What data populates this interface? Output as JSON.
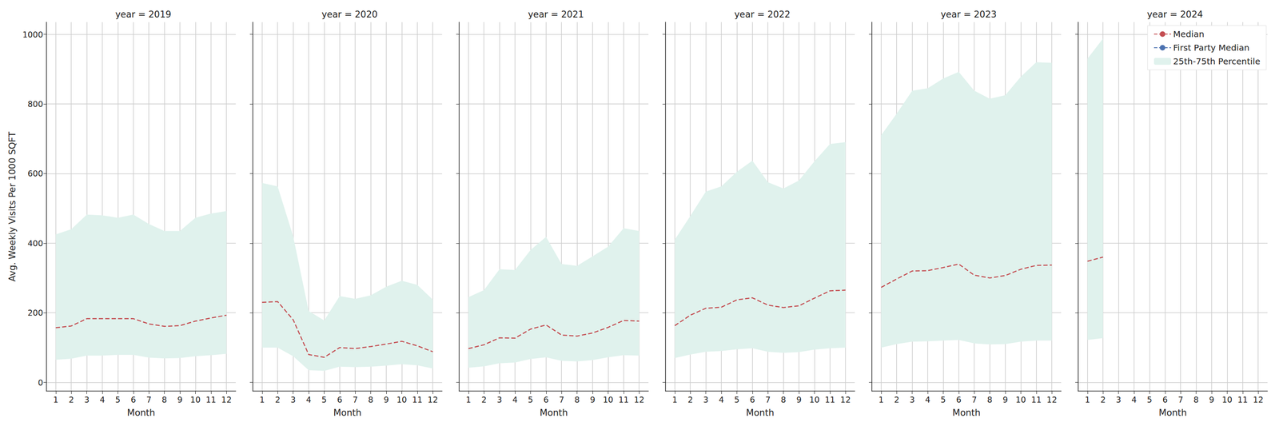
{
  "chart_data": [
    {
      "type": "line",
      "title": "year = 2019",
      "x_label": "Month",
      "y_label": "Avg. Weekly Visits Per 1000 SQFT",
      "x": [
        1,
        2,
        3,
        4,
        5,
        6,
        7,
        8,
        9,
        10,
        11,
        12
      ],
      "xlim": [
        0.4,
        12.6
      ],
      "xticks": [
        1,
        2,
        3,
        4,
        5,
        6,
        7,
        8,
        9,
        10,
        11,
        12
      ],
      "ylim": [
        -25,
        1035
      ],
      "yticks": [
        0,
        200,
        400,
        600,
        800,
        1000
      ],
      "grid": true,
      "series": [
        {
          "name": "Median",
          "color": "#c44e52",
          "line_style": "dashed",
          "values": [
            157,
            162,
            183,
            183,
            183,
            183,
            168,
            161,
            163,
            176,
            185,
            193
          ]
        },
        {
          "name": "First Party Median",
          "color": "#4c72b0",
          "line_style": "dashed",
          "values": [
            null,
            null,
            null,
            null,
            null,
            null,
            null,
            null,
            null,
            null,
            null,
            null
          ]
        },
        {
          "name": "25th-75th Percentile",
          "type": "band",
          "color": "#e0f2ed",
          "lower": [
            65,
            68,
            77,
            77,
            79,
            79,
            71,
            69,
            70,
            75,
            78,
            82
          ],
          "upper": [
            425,
            440,
            482,
            480,
            473,
            482,
            455,
            435,
            435,
            473,
            485,
            492
          ]
        }
      ]
    },
    {
      "type": "line",
      "title": "year = 2020",
      "x_label": "Month",
      "x": [
        1,
        2,
        3,
        4,
        5,
        6,
        7,
        8,
        9,
        10,
        11,
        12
      ],
      "xlim": [
        0.4,
        12.6
      ],
      "xticks": [
        1,
        2,
        3,
        4,
        5,
        6,
        7,
        8,
        9,
        10,
        11,
        12
      ],
      "ylim": [
        -25,
        1035
      ],
      "yticks": [
        0,
        200,
        400,
        600,
        800,
        1000
      ],
      "grid": true,
      "series": [
        {
          "name": "Median",
          "color": "#c44e52",
          "line_style": "dashed",
          "values": [
            230,
            232,
            180,
            80,
            72,
            100,
            97,
            103,
            110,
            118,
            105,
            88
          ]
        },
        {
          "name": "First Party Median",
          "color": "#4c72b0",
          "line_style": "dashed",
          "values": [
            null,
            null,
            null,
            null,
            null,
            null,
            null,
            null,
            null,
            null,
            null,
            null
          ]
        },
        {
          "name": "25th-75th Percentile",
          "type": "band",
          "color": "#e0f2ed",
          "lower": [
            100,
            100,
            75,
            35,
            33,
            45,
            44,
            45,
            48,
            52,
            49,
            40
          ],
          "upper": [
            573,
            563,
            420,
            205,
            178,
            248,
            240,
            250,
            275,
            292,
            280,
            238
          ]
        }
      ]
    },
    {
      "type": "line",
      "title": "year = 2021",
      "x_label": "Month",
      "x": [
        1,
        2,
        3,
        4,
        5,
        6,
        7,
        8,
        9,
        10,
        11,
        12
      ],
      "xlim": [
        0.4,
        12.6
      ],
      "xticks": [
        1,
        2,
        3,
        4,
        5,
        6,
        7,
        8,
        9,
        10,
        11,
        12
      ],
      "ylim": [
        -25,
        1035
      ],
      "yticks": [
        0,
        200,
        400,
        600,
        800,
        1000
      ],
      "grid": true,
      "series": [
        {
          "name": "Median",
          "color": "#c44e52",
          "line_style": "dashed",
          "values": [
            97,
            108,
            128,
            127,
            153,
            165,
            136,
            133,
            142,
            158,
            178,
            176
          ]
        },
        {
          "name": "First Party Median",
          "color": "#4c72b0",
          "line_style": "dashed",
          "values": [
            null,
            null,
            null,
            null,
            null,
            null,
            null,
            null,
            null,
            null,
            null,
            null
          ]
        },
        {
          "name": "25th-75th Percentile",
          "type": "band",
          "color": "#e0f2ed",
          "lower": [
            42,
            46,
            55,
            57,
            67,
            72,
            62,
            60,
            64,
            72,
            78,
            77
          ],
          "upper": [
            245,
            265,
            325,
            323,
            380,
            418,
            340,
            335,
            362,
            390,
            443,
            435
          ]
        }
      ]
    },
    {
      "type": "line",
      "title": "year = 2022",
      "x_label": "Month",
      "x": [
        1,
        2,
        3,
        4,
        5,
        6,
        7,
        8,
        9,
        10,
        11,
        12
      ],
      "xlim": [
        0.4,
        12.6
      ],
      "xticks": [
        1,
        2,
        3,
        4,
        5,
        6,
        7,
        8,
        9,
        10,
        11,
        12
      ],
      "ylim": [
        -25,
        1035
      ],
      "yticks": [
        0,
        200,
        400,
        600,
        800,
        1000
      ],
      "grid": true,
      "series": [
        {
          "name": "Median",
          "color": "#c44e52",
          "line_style": "dashed",
          "values": [
            163,
            193,
            213,
            216,
            237,
            243,
            222,
            215,
            220,
            242,
            263,
            265
          ]
        },
        {
          "name": "First Party Median",
          "color": "#4c72b0",
          "line_style": "dashed",
          "values": [
            null,
            null,
            null,
            null,
            null,
            null,
            null,
            null,
            null,
            null,
            null,
            null
          ]
        },
        {
          "name": "25th-75th Percentile",
          "type": "band",
          "color": "#e0f2ed",
          "lower": [
            70,
            80,
            88,
            90,
            95,
            98,
            88,
            85,
            87,
            94,
            98,
            100
          ],
          "upper": [
            410,
            478,
            548,
            563,
            605,
            637,
            575,
            557,
            580,
            635,
            685,
            690
          ]
        }
      ]
    },
    {
      "type": "line",
      "title": "year = 2023",
      "x_label": "Month",
      "x": [
        1,
        2,
        3,
        4,
        5,
        6,
        7,
        8,
        9,
        10,
        11,
        12
      ],
      "xlim": [
        0.4,
        12.6
      ],
      "xticks": [
        1,
        2,
        3,
        4,
        5,
        6,
        7,
        8,
        9,
        10,
        11,
        12
      ],
      "ylim": [
        -25,
        1035
      ],
      "yticks": [
        0,
        200,
        400,
        600,
        800,
        1000
      ],
      "grid": true,
      "series": [
        {
          "name": "Median",
          "color": "#c44e52",
          "line_style": "dashed",
          "values": [
            273,
            297,
            320,
            321,
            330,
            340,
            308,
            300,
            307,
            325,
            336,
            337
          ]
        },
        {
          "name": "First Party Median",
          "color": "#4c72b0",
          "line_style": "dashed",
          "values": [
            null,
            null,
            null,
            null,
            null,
            null,
            null,
            null,
            null,
            null,
            null,
            null
          ]
        },
        {
          "name": "25th-75th Percentile",
          "type": "band",
          "color": "#e0f2ed",
          "lower": [
            100,
            110,
            117,
            118,
            120,
            122,
            112,
            109,
            110,
            117,
            120,
            120
          ],
          "upper": [
            710,
            772,
            838,
            845,
            873,
            892,
            838,
            815,
            825,
            878,
            920,
            918
          ]
        }
      ]
    },
    {
      "type": "line",
      "title": "year = 2024",
      "x_label": "Month",
      "legend": "upper right",
      "x": [
        1,
        2,
        3,
        4,
        5,
        6,
        7,
        8,
        9,
        10,
        11,
        12
      ],
      "xlim": [
        0.4,
        12.6
      ],
      "xticks": [
        1,
        2,
        3,
        4,
        5,
        6,
        7,
        8,
        9,
        10,
        11,
        12
      ],
      "ylim": [
        -25,
        1035
      ],
      "yticks": [
        0,
        200,
        400,
        600,
        800,
        1000
      ],
      "grid": true,
      "series": [
        {
          "name": "Median",
          "color": "#c44e52",
          "line_style": "dashed",
          "values": [
            348,
            360,
            null,
            null,
            null,
            null,
            null,
            null,
            null,
            null,
            null,
            null
          ]
        },
        {
          "name": "First Party Median",
          "color": "#4c72b0",
          "line_style": "dashed",
          "values": [
            null,
            null,
            null,
            null,
            null,
            null,
            null,
            null,
            null,
            null,
            null,
            null
          ]
        },
        {
          "name": "25th-75th Percentile",
          "type": "band",
          "color": "#e0f2ed",
          "lower": [
            122,
            127,
            null,
            null,
            null,
            null,
            null,
            null,
            null,
            null,
            null,
            null
          ],
          "upper": [
            930,
            988,
            null,
            null,
            null,
            null,
            null,
            null,
            null,
            null,
            null,
            null
          ]
        }
      ]
    }
  ]
}
